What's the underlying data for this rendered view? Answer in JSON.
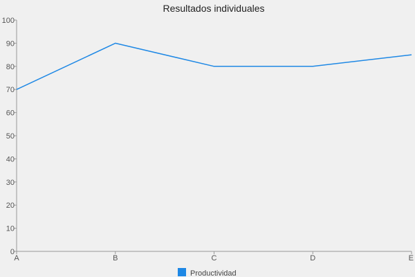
{
  "chart_data": {
    "type": "line",
    "title": "Resultados individuales",
    "categories": [
      "A",
      "B",
      "C",
      "D",
      "E"
    ],
    "series": [
      {
        "name": "Productividad",
        "values": [
          70,
          90,
          80,
          80,
          85
        ]
      }
    ],
    "xlabel": "",
    "ylabel": "",
    "ylim": [
      0,
      100
    ],
    "yticks": [
      0,
      10,
      20,
      30,
      40,
      50,
      60,
      70,
      80,
      90,
      100
    ],
    "grid": false,
    "legend_position": "bottom-center",
    "colors": {
      "series": "#1e88e5",
      "axis": "#999999",
      "background": "#f0f0f0"
    }
  }
}
